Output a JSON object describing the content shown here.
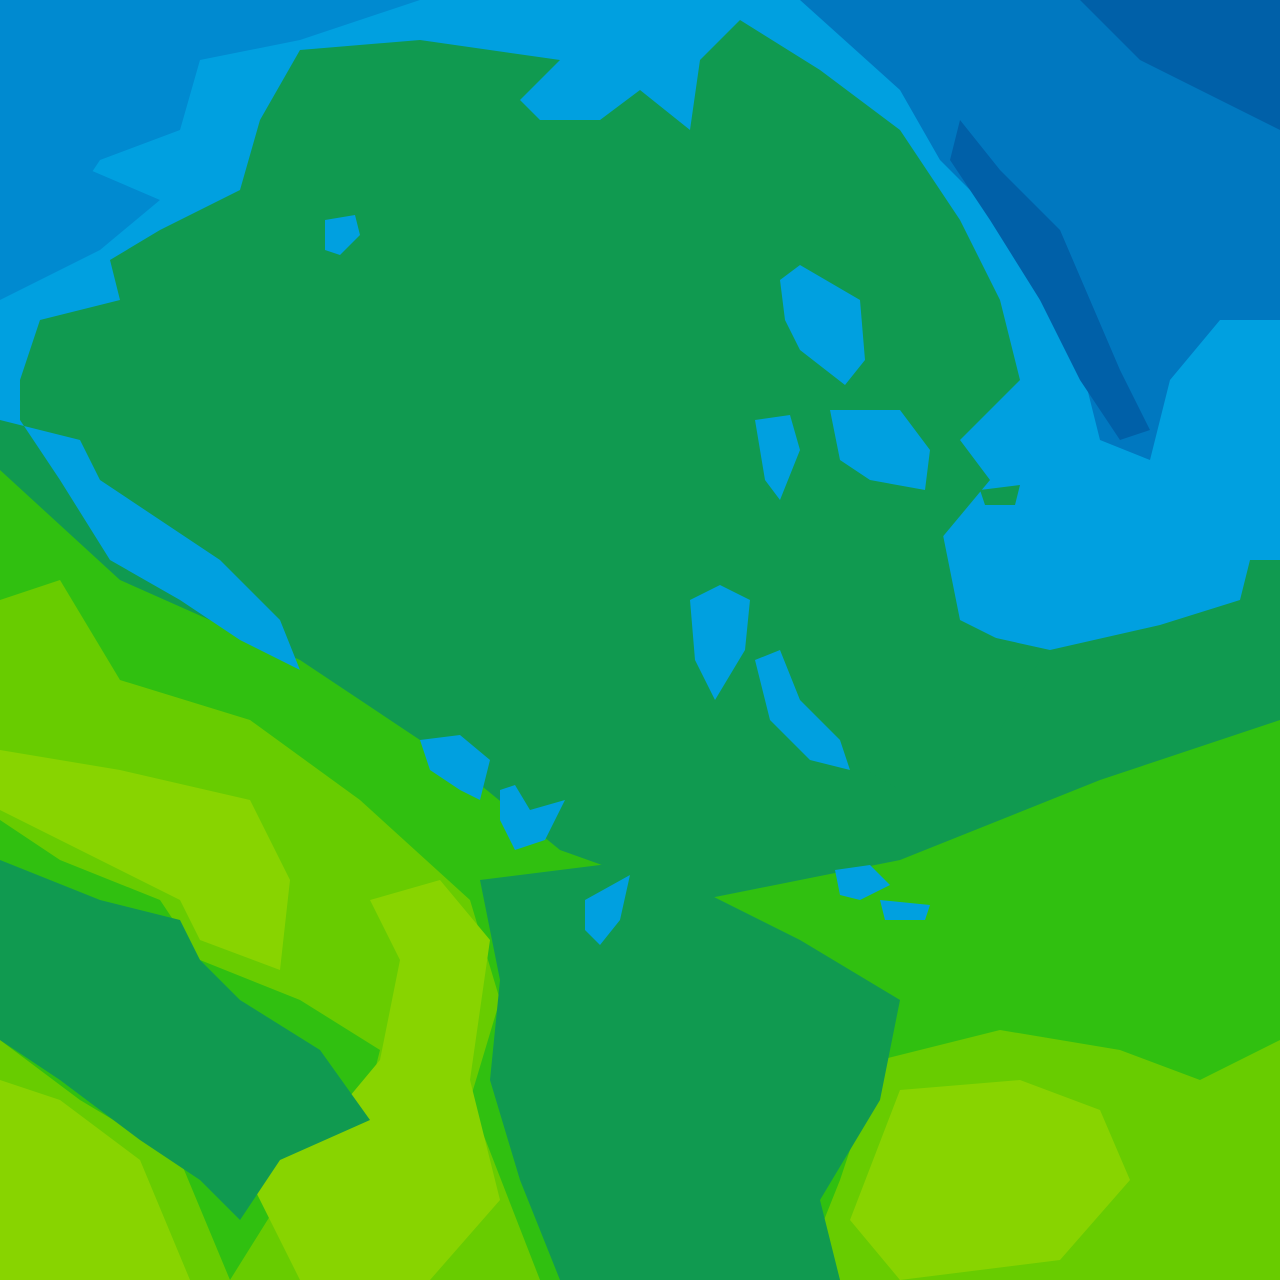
{
  "map": {
    "type": "weather-field-contour",
    "palette": {
      "deep_blue": "#0060a8",
      "mid_blue": "#0078c0",
      "blue": "#008ad0",
      "light_blue": "#00a0e0",
      "teal_green": "#109a50",
      "green": "#20b030",
      "bright_green": "#30c010",
      "lime": "#68cc00",
      "yellow_green": "#88d400"
    }
  }
}
